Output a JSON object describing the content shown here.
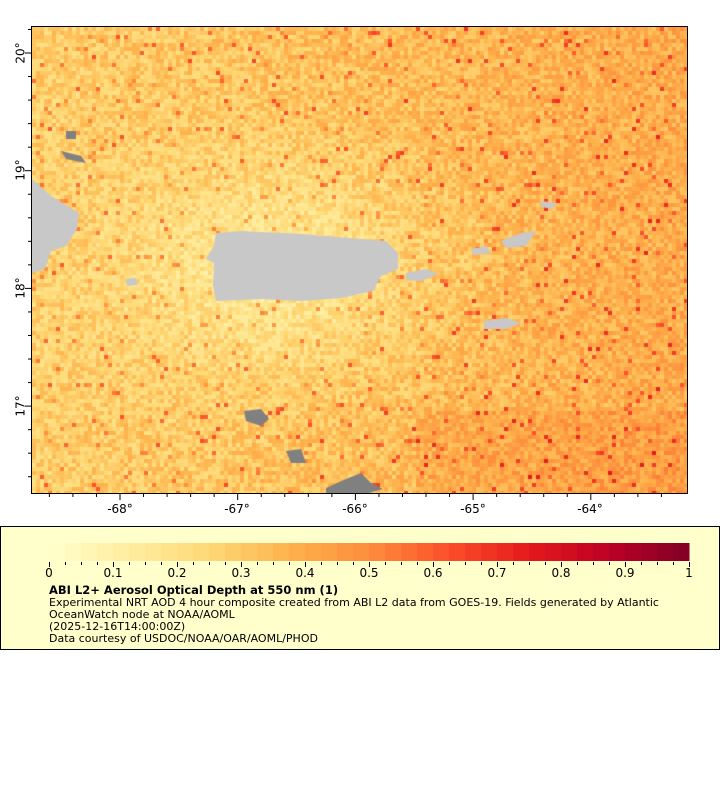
{
  "map": {
    "lon_ticks": [
      "-68°",
      "-67°",
      "-66°",
      "-65°",
      "-64°"
    ],
    "lat_ticks": [
      "20°",
      "19°",
      "18°",
      "17°"
    ],
    "lon_values": [
      -68,
      -67,
      -66,
      -65,
      -64
    ],
    "lat_values": [
      20,
      19,
      18,
      17
    ],
    "land_color": "#c8c8c8",
    "nodata_color": "#808080"
  },
  "legend": {
    "colorbar_ticks": [
      "0",
      "0.1",
      "0.2",
      "0.3",
      "0.4",
      "0.5",
      "0.6",
      "0.7",
      "0.8",
      "0.9",
      "1"
    ],
    "colorbar_range": [
      0,
      1
    ],
    "colormap": [
      "#ffffcc",
      "#ffeda0",
      "#fed976",
      "#feb24c",
      "#fd8d3c",
      "#fc4e2a",
      "#e31a1c",
      "#bd0026",
      "#800026"
    ],
    "title": "ABI L2+ Aerosol Optical Depth at 550 nm (1)",
    "description": "Experimental NRT AOD 4 hour composite created from ABI L2 data from GOES-19. Fields generated by Atlantic OceanWatch node at NOAA/AOML",
    "time": "(2025-12-16T14:00:00Z)",
    "credit": "Data courtesy of USDOC/NOAA/OAR/AOML/PHOD"
  }
}
